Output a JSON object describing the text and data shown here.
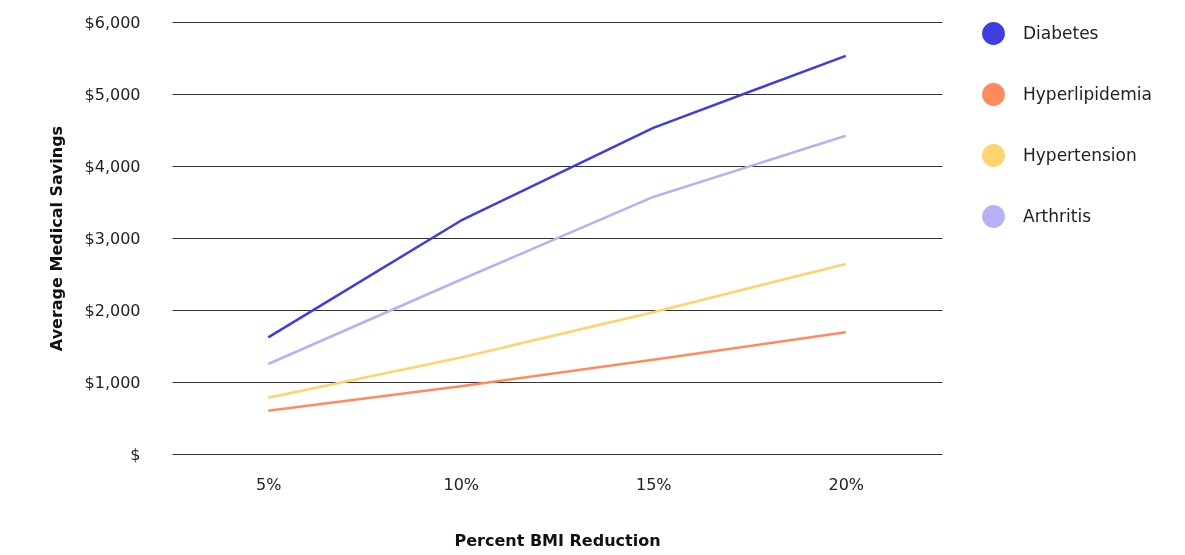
{
  "chart_data": {
    "type": "line",
    "xlabel": "Percent BMI Reduction",
    "ylabel": "Average Medical Savings",
    "categories": [
      "5%",
      "10%",
      "15%",
      "20%"
    ],
    "series": [
      {
        "name": "Diabetes",
        "color": "#3d3de0",
        "values": [
          1620,
          3240,
          4530,
          5530
        ]
      },
      {
        "name": "Hyperlipidemia",
        "color": "#ff8a5c",
        "values": [
          600,
          940,
          1310,
          1690
        ]
      },
      {
        "name": "Hypertension",
        "color": "#ffd36e",
        "values": [
          780,
          1340,
          1970,
          2640
        ]
      },
      {
        "name": "Arthritis",
        "color": "#b8b0f5",
        "values": [
          1250,
          2420,
          3570,
          4420
        ]
      }
    ],
    "ylim": [
      0,
      6000
    ],
    "yticks": [
      {
        "value": 0,
        "label": "$"
      },
      {
        "value": 1000,
        "label": "$1,000"
      },
      {
        "value": 2000,
        "label": "$2,000"
      },
      {
        "value": 3000,
        "label": "$3,000"
      },
      {
        "value": 4000,
        "label": "$4,000"
      },
      {
        "value": 5000,
        "label": "$5,000"
      },
      {
        "value": 6000,
        "label": "$6,000"
      }
    ],
    "grid": "y",
    "legend": "right",
    "marker": "none",
    "line_style": "solid"
  }
}
